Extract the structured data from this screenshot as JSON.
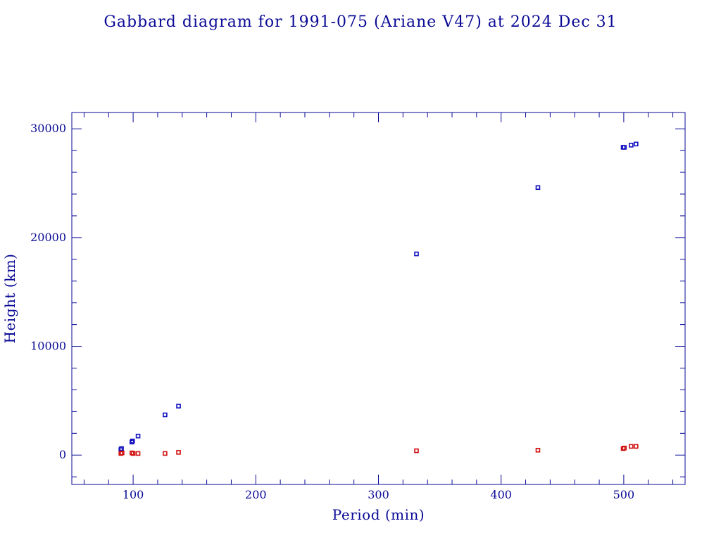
{
  "chart_data": {
    "type": "scatter",
    "title": "Gabbard diagram for 1991-075 (Ariane V47) at 2024 Dec 31",
    "xlabel": "Period (min)",
    "ylabel": "Height (km)",
    "xlim": [
      50,
      550
    ],
    "ylim": [
      -2700,
      31500
    ],
    "x_ticks": [
      100,
      200,
      300,
      400,
      500
    ],
    "y_ticks": [
      0,
      10000,
      20000,
      30000
    ],
    "x_minor_step": 20,
    "y_minor_step": 2000,
    "grid": false,
    "legend": "none",
    "series": [
      {
        "color": "#1010c0",
        "points": [
          {
            "x": 90,
            "y": 500
          },
          {
            "x": 90.5,
            "y": 600
          },
          {
            "x": 99,
            "y": 1200
          },
          {
            "x": 99.5,
            "y": 1300
          },
          {
            "x": 104,
            "y": 1750
          },
          {
            "x": 126,
            "y": 3700
          },
          {
            "x": 137,
            "y": 4500
          },
          {
            "x": 331,
            "y": 18500
          },
          {
            "x": 430,
            "y": 24600
          },
          {
            "x": 499.5,
            "y": 28300
          },
          {
            "x": 500.5,
            "y": 28300
          },
          {
            "x": 506,
            "y": 28500
          },
          {
            "x": 510,
            "y": 28600
          }
        ]
      },
      {
        "color": "#d01010",
        "points": [
          {
            "x": 90,
            "y": 150
          },
          {
            "x": 91,
            "y": 200
          },
          {
            "x": 99,
            "y": 200
          },
          {
            "x": 100,
            "y": 150
          },
          {
            "x": 104,
            "y": 150
          },
          {
            "x": 126,
            "y": 150
          },
          {
            "x": 137,
            "y": 250
          },
          {
            "x": 331,
            "y": 400
          },
          {
            "x": 430,
            "y": 450
          },
          {
            "x": 499.5,
            "y": 600
          },
          {
            "x": 500.5,
            "y": 650
          },
          {
            "x": 506,
            "y": 800
          },
          {
            "x": 510,
            "y": 800
          }
        ]
      }
    ]
  }
}
